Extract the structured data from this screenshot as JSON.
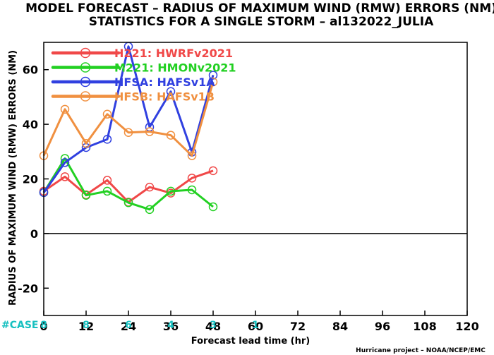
{
  "chart_data": {
    "type": "line",
    "title": "MODEL FORECAST – RADIUS OF MAXIMUM WIND (RMW) ERRORS (NM)",
    "subtitle": "STATISTICS FOR A SINGLE STORM – al132022_JULIA",
    "xlabel": "Forecast lead time (hr)",
    "ylabel": "RADIUS OF MAXIMUM WIND (RMW) ERRORS (NM)",
    "xlim": [
      0,
      120
    ],
    "ylim": [
      -30,
      70
    ],
    "xticks": [
      0,
      12,
      24,
      36,
      48,
      60,
      72,
      84,
      96,
      108,
      120
    ],
    "yticks": [
      -20,
      0,
      20,
      40,
      60
    ],
    "zero_line": true,
    "grid": false,
    "legend_position": "top-left",
    "case_label": "#CASE",
    "case_counts": [
      {
        "x": 0,
        "n": "8"
      },
      {
        "x": 12,
        "n": "8"
      },
      {
        "x": 24,
        "n": "6"
      },
      {
        "x": 36,
        "n": "4"
      },
      {
        "x": 48,
        "n": "3"
      },
      {
        "x": 60,
        "n": "1"
      }
    ],
    "series": [
      {
        "name": "H221: HWRFv2021",
        "color": "#f04848",
        "x": [
          0,
          6,
          12,
          18,
          24,
          30,
          36,
          42,
          48
        ],
        "y": [
          15.5,
          20.8,
          14.2,
          19.5,
          11.5,
          17,
          14.8,
          20.3,
          23
        ]
      },
      {
        "name": "M221: HMONv2021",
        "color": "#22d022",
        "x": [
          0,
          6,
          12,
          18,
          24,
          30,
          36,
          42,
          48
        ],
        "y": [
          15,
          27.5,
          14,
          15.5,
          11.3,
          8.8,
          15.5,
          16,
          9.8
        ]
      },
      {
        "name": "HFSA: HAFSv1A",
        "color": "#3040e0",
        "x": [
          0,
          6,
          12,
          18,
          24,
          30,
          36,
          42,
          48
        ],
        "y": [
          15,
          26,
          31.5,
          34.5,
          68.5,
          39,
          52,
          29.8,
          58
        ]
      },
      {
        "name": "HFSB: HAFSv1B",
        "color": "#f09040",
        "x": [
          0,
          6,
          12,
          18,
          24,
          30,
          36,
          42,
          48
        ],
        "y": [
          28.5,
          45.5,
          33,
          43.7,
          37,
          37.3,
          36,
          28.5,
          55.5
        ]
      }
    ]
  },
  "footer": {
    "credit": "Hurricane project – NOAA/NCEP/EMC"
  }
}
